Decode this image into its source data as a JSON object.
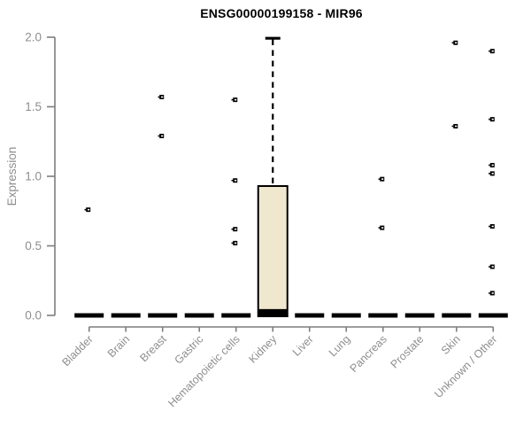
{
  "chart_data": {
    "type": "boxplot",
    "title": "ENSG00000199158 - MIR96",
    "ylabel": "Expression",
    "xlabel": "",
    "ylim": [
      0.0,
      2.0
    ],
    "yticks": [
      0.0,
      0.5,
      1.0,
      1.5,
      2.0
    ],
    "ytick_labels": [
      "0.0",
      "0.5",
      "1.0",
      "1.5",
      "2.0"
    ],
    "grid": false,
    "legend_position": "none",
    "categories": [
      "Bladder",
      "Brain",
      "Breast",
      "Gastric",
      "Hematopoietic cells",
      "Kidney",
      "Liver",
      "Lung",
      "Pancreas",
      "Prostate",
      "Skin",
      "Unknown / Other"
    ],
    "boxes": [
      {
        "category": "Bladder",
        "q1": 0,
        "median": 0,
        "q3": 0,
        "whisker_low": 0,
        "whisker_high": 0,
        "outliers": [
          0.76
        ]
      },
      {
        "category": "Brain",
        "q1": 0,
        "median": 0,
        "q3": 0,
        "whisker_low": 0,
        "whisker_high": 0,
        "outliers": []
      },
      {
        "category": "Breast",
        "q1": 0,
        "median": 0,
        "q3": 0,
        "whisker_low": 0,
        "whisker_high": 0,
        "outliers": [
          1.57,
          1.29
        ]
      },
      {
        "category": "Gastric",
        "q1": 0,
        "median": 0,
        "q3": 0,
        "whisker_low": 0,
        "whisker_high": 0,
        "outliers": []
      },
      {
        "category": "Hematopoietic cells",
        "q1": 0,
        "median": 0,
        "q3": 0,
        "whisker_low": 0,
        "whisker_high": 0,
        "outliers": [
          1.55,
          0.97,
          0.62,
          0.52
        ]
      },
      {
        "category": "Kidney",
        "q1": 0,
        "median": 0.02,
        "q3": 0.93,
        "whisker_low": 0,
        "whisker_high": 2.0,
        "outliers": []
      },
      {
        "category": "Liver",
        "q1": 0,
        "median": 0,
        "q3": 0,
        "whisker_low": 0,
        "whisker_high": 0,
        "outliers": []
      },
      {
        "category": "Lung",
        "q1": 0,
        "median": 0,
        "q3": 0,
        "whisker_low": 0,
        "whisker_high": 0,
        "outliers": []
      },
      {
        "category": "Pancreas",
        "q1": 0,
        "median": 0,
        "q3": 0,
        "whisker_low": 0,
        "whisker_high": 0,
        "outliers": [
          0.98,
          0.63
        ]
      },
      {
        "category": "Prostate",
        "q1": 0,
        "median": 0,
        "q3": 0,
        "whisker_low": 0,
        "whisker_high": 0,
        "outliers": []
      },
      {
        "category": "Skin",
        "q1": 0,
        "median": 0,
        "q3": 0,
        "whisker_low": 0,
        "whisker_high": 0,
        "outliers": [
          1.96,
          1.36
        ]
      },
      {
        "category": "Unknown / Other",
        "q1": 0,
        "median": 0,
        "q3": 0,
        "whisker_low": 0,
        "whisker_high": 0,
        "outliers": [
          1.9,
          1.41,
          1.08,
          1.02,
          0.64,
          0.35,
          0.16
        ]
      }
    ],
    "colors": {
      "box_fill": "#EFE8CF",
      "box_border": "#000000",
      "collapsed_box": "#000000",
      "whisker": "#000000",
      "outlier": "#000000",
      "axis": "#7d7d7d",
      "tick_label": "#8e8e8e",
      "title": "#000000",
      "background": "#FFFFFF"
    }
  }
}
